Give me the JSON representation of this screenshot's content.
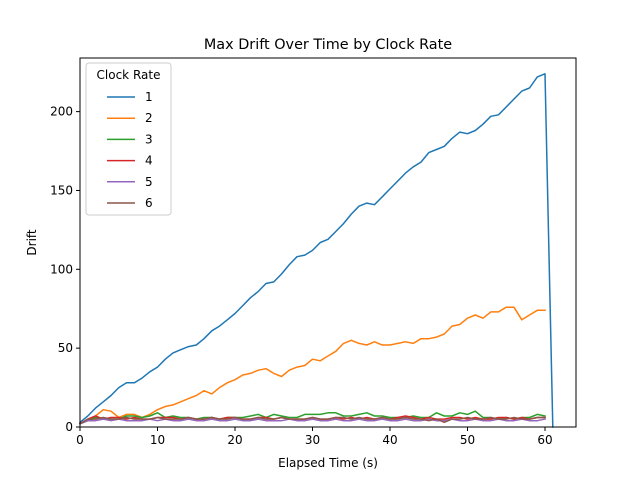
{
  "chart_data": {
    "type": "line",
    "title": "Max Drift Over Time by Clock Rate",
    "xlabel": "Elapsed Time (s)",
    "ylabel": "Drift",
    "xlim": [
      0,
      64
    ],
    "ylim": [
      0,
      234
    ],
    "xticks": [
      0,
      10,
      20,
      30,
      40,
      50,
      60
    ],
    "yticks": [
      0,
      50,
      100,
      150,
      200
    ],
    "grid": false,
    "legend": {
      "title": "Clock Rate",
      "placement": "top-left"
    },
    "series": [
      {
        "name": "1",
        "color": "#1f77b4",
        "x": [
          0,
          1,
          2,
          3,
          4,
          5,
          6,
          7,
          8,
          9,
          10,
          11,
          12,
          13,
          14,
          15,
          16,
          17,
          18,
          19,
          20,
          21,
          22,
          23,
          24,
          25,
          26,
          27,
          28,
          29,
          30,
          31,
          32,
          33,
          34,
          35,
          36,
          37,
          38,
          39,
          40,
          41,
          42,
          43,
          44,
          45,
          46,
          47,
          48,
          49,
          50,
          51,
          52,
          53,
          54,
          55,
          56,
          57,
          58,
          59,
          60,
          61
        ],
        "y": [
          3,
          7,
          12,
          16,
          20,
          25,
          28,
          28,
          31,
          35,
          38,
          43,
          47,
          49,
          51,
          52,
          56,
          61,
          64,
          68,
          72,
          77,
          82,
          86,
          91,
          92,
          97,
          103,
          108,
          109,
          112,
          117,
          119,
          124,
          129,
          135,
          140,
          142,
          141,
          146,
          151,
          156,
          161,
          165,
          168,
          174,
          176,
          178,
          183,
          187,
          186,
          188,
          192,
          197,
          198,
          203,
          208,
          213,
          215,
          222,
          224,
          0
        ]
      },
      {
        "name": "2",
        "color": "#ff7f0e",
        "x": [
          0,
          1,
          2,
          3,
          4,
          5,
          6,
          7,
          8,
          9,
          10,
          11,
          12,
          13,
          14,
          15,
          16,
          17,
          18,
          19,
          20,
          21,
          22,
          23,
          24,
          25,
          26,
          27,
          28,
          29,
          30,
          31,
          32,
          33,
          34,
          35,
          36,
          37,
          38,
          39,
          40,
          41,
          42,
          43,
          44,
          45,
          46,
          47,
          48,
          49,
          50,
          51,
          52,
          53,
          54,
          55,
          56,
          57,
          58,
          59,
          60
        ],
        "y": [
          2,
          4,
          7,
          11,
          10,
          6,
          8,
          8,
          6,
          8,
          11,
          13,
          14,
          16,
          18,
          20,
          23,
          21,
          25,
          28,
          30,
          33,
          34,
          36,
          37,
          34,
          32,
          36,
          38,
          39,
          43,
          42,
          45,
          48,
          53,
          55,
          53,
          52,
          54,
          52,
          52,
          53,
          54,
          53,
          56,
          56,
          57,
          59,
          64,
          65,
          69,
          71,
          69,
          73,
          73,
          76,
          76,
          68,
          71,
          74,
          74
        ]
      },
      {
        "name": "3",
        "color": "#2ca02c",
        "x": [
          0,
          1,
          2,
          3,
          4,
          5,
          6,
          7,
          8,
          9,
          10,
          11,
          12,
          13,
          14,
          15,
          16,
          17,
          18,
          19,
          20,
          21,
          22,
          23,
          24,
          25,
          26,
          27,
          28,
          29,
          30,
          31,
          32,
          33,
          34,
          35,
          36,
          37,
          38,
          39,
          40,
          41,
          42,
          43,
          44,
          45,
          46,
          47,
          48,
          49,
          50,
          51,
          52,
          53,
          54,
          55,
          56,
          57,
          58,
          59,
          60
        ],
        "y": [
          2,
          4,
          6,
          5,
          5,
          5,
          7,
          7,
          6,
          7,
          9,
          6,
          7,
          6,
          6,
          5,
          6,
          6,
          5,
          6,
          6,
          6,
          7,
          8,
          6,
          8,
          7,
          6,
          6,
          8,
          8,
          8,
          9,
          9,
          7,
          7,
          8,
          9,
          7,
          7,
          6,
          6,
          6,
          7,
          6,
          6,
          9,
          7,
          7,
          9,
          8,
          10,
          6,
          6,
          5,
          6,
          5,
          6,
          6,
          8,
          7
        ]
      },
      {
        "name": "4",
        "color": "#d62728",
        "x": [
          0,
          1,
          2,
          3,
          4,
          5,
          6,
          7,
          8,
          9,
          10,
          11,
          12,
          13,
          14,
          15,
          16,
          17,
          18,
          19,
          20,
          21,
          22,
          23,
          24,
          25,
          26,
          27,
          28,
          29,
          30,
          31,
          32,
          33,
          34,
          35,
          36,
          37,
          38,
          39,
          40,
          41,
          42,
          43,
          44,
          45,
          46,
          47,
          48,
          49,
          50,
          51,
          52,
          53,
          54,
          55,
          56,
          57,
          58,
          59,
          60
        ],
        "y": [
          2,
          5,
          7,
          5,
          6,
          6,
          5,
          6,
          5,
          5,
          6,
          6,
          6,
          5,
          6,
          5,
          5,
          6,
          5,
          6,
          6,
          5,
          5,
          6,
          6,
          5,
          6,
          5,
          5,
          5,
          6,
          5,
          5,
          6,
          5,
          6,
          5,
          6,
          5,
          6,
          5,
          6,
          7,
          6,
          5,
          6,
          5,
          5,
          6,
          6,
          5,
          6,
          5,
          5,
          6,
          6,
          5,
          6,
          5,
          6,
          6
        ]
      },
      {
        "name": "5",
        "color": "#9467bd",
        "x": [
          0,
          1,
          2,
          3,
          4,
          5,
          6,
          7,
          8,
          9,
          10,
          11,
          12,
          13,
          14,
          15,
          16,
          17,
          18,
          19,
          20,
          21,
          22,
          23,
          24,
          25,
          26,
          27,
          28,
          29,
          30,
          31,
          32,
          33,
          34,
          35,
          36,
          37,
          38,
          39,
          40,
          41,
          42,
          43,
          44,
          45,
          46,
          47,
          48,
          49,
          50,
          51,
          52,
          53,
          54,
          55,
          56,
          57,
          58,
          59,
          60
        ],
        "y": [
          2,
          4,
          4,
          5,
          4,
          5,
          4,
          4,
          4,
          5,
          4,
          5,
          4,
          4,
          5,
          4,
          4,
          5,
          4,
          4,
          5,
          4,
          4,
          5,
          4,
          4,
          4,
          5,
          4,
          4,
          5,
          4,
          4,
          5,
          4,
          4,
          5,
          4,
          4,
          5,
          4,
          4,
          5,
          4,
          4,
          5,
          4,
          4,
          5,
          4,
          4,
          5,
          4,
          4,
          5,
          4,
          4,
          5,
          4,
          4,
          5
        ]
      },
      {
        "name": "6",
        "color": "#8c564b",
        "x": [
          0,
          1,
          2,
          3,
          4,
          5,
          6,
          7,
          8,
          9,
          10,
          11,
          12,
          13,
          14,
          15,
          16,
          17,
          18,
          19,
          20,
          21,
          22,
          23,
          24,
          25,
          26,
          27,
          28,
          29,
          30,
          31,
          32,
          33,
          34,
          35,
          36,
          37,
          38,
          39,
          40,
          41,
          42,
          43,
          44,
          45,
          46,
          47,
          48,
          49,
          50,
          51,
          52,
          53,
          54,
          55,
          56,
          57,
          58,
          59,
          60
        ],
        "y": [
          2,
          5,
          5,
          6,
          5,
          5,
          6,
          5,
          5,
          5,
          6,
          5,
          5,
          5,
          6,
          5,
          5,
          6,
          5,
          5,
          6,
          5,
          5,
          6,
          5,
          5,
          6,
          5,
          5,
          5,
          6,
          5,
          5,
          6,
          6,
          5,
          6,
          5,
          5,
          6,
          5,
          5,
          6,
          5,
          5,
          4,
          5,
          3,
          5,
          5,
          6,
          5,
          5,
          6,
          5,
          5,
          6,
          5,
          5,
          6,
          6
        ]
      }
    ]
  }
}
